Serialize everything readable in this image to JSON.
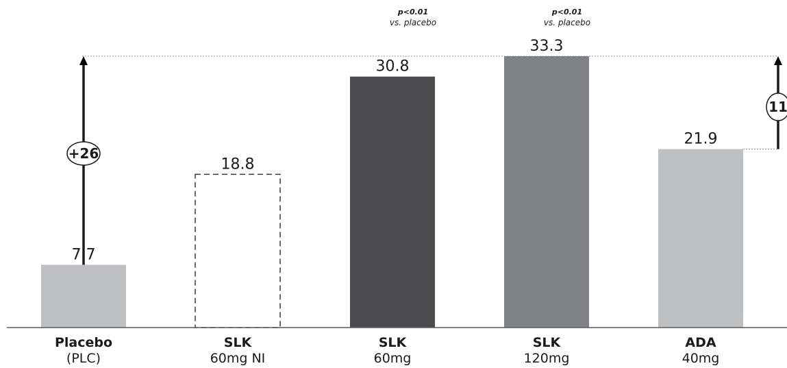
{
  "chart_data": {
    "type": "bar",
    "categories": [
      {
        "main": "Placebo",
        "sub": "(PLC)"
      },
      {
        "main": "SLK",
        "sub": "60mg NI"
      },
      {
        "main": "SLK",
        "sub": "60mg"
      },
      {
        "main": "SLK",
        "sub": "120mg"
      },
      {
        "main": "ADA",
        "sub": "40mg"
      }
    ],
    "values": [
      7.7,
      18.8,
      30.8,
      33.3,
      21.9
    ],
    "value_labels": [
      "7.7",
      "18.8",
      "30.8",
      "33.3",
      "21.9"
    ],
    "bar_colors": [
      "#bebfc1",
      "none",
      "#4b4b4d",
      "#808184",
      "#bebfc1"
    ],
    "dashed_outline": [
      false,
      true,
      false,
      false,
      false
    ],
    "annotations": [
      {
        "category_index": 2,
        "line1": "p<0.01",
        "line2": "vs. placebo"
      },
      {
        "category_index": 3,
        "line1": "p<0.01",
        "line2": "vs. placebo"
      }
    ],
    "difference_arrows": [
      {
        "label": "+26",
        "from_value": 7.7,
        "to_value": 33.3,
        "side": "left"
      },
      {
        "label": "11",
        "from_value": 21.9,
        "to_value": 33.3,
        "side": "right"
      }
    ],
    "ylim": [
      0,
      33.3
    ],
    "grid": false,
    "title": "",
    "xlabel": "",
    "ylabel": ""
  }
}
